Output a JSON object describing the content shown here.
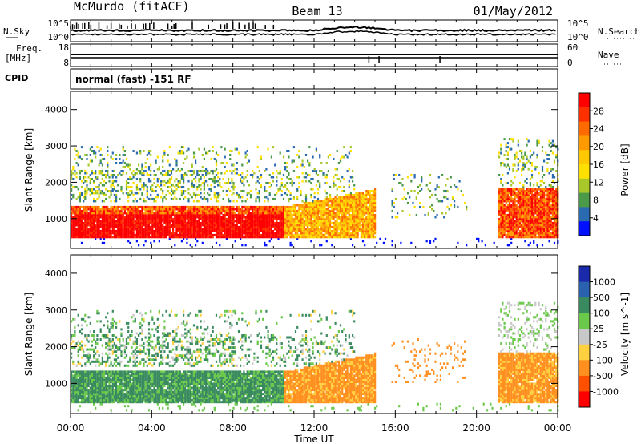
{
  "header": {
    "station": "McMurdo (fitACF)",
    "beam": "Beam 13",
    "date": "01/May/2012"
  },
  "noise_panel": {
    "left_label": "N.Sky",
    "right_label": "N.Search",
    "left_ticks": [
      "10^5",
      "10^0"
    ],
    "right_ticks": [
      "10^5",
      "10^0"
    ]
  },
  "freq_panel": {
    "left_label_1": "Freq.",
    "left_label_2": "[MHz]",
    "left_ticks": [
      "18",
      "8"
    ],
    "right_label": "Nave",
    "right_ticks": [
      "60",
      "0"
    ]
  },
  "cpid_panel": {
    "label": "CPID",
    "text": "normal (fast) -151 RF"
  },
  "power_panel": {
    "ylabel": "Slant Range [km]",
    "yticks": [
      "4000",
      "3000",
      "2000",
      "1000"
    ],
    "colorbar_label": "Power [dB]",
    "colorbar_ticks": [
      "28",
      "24",
      "20",
      "16",
      "12",
      "8",
      "4"
    ],
    "colorbar_colors": [
      "#ff0000",
      "#ff3000",
      "#ff6a00",
      "#ff9a00",
      "#ffc800",
      "#ffe000",
      "#a8c82a",
      "#4a9a4a",
      "#2a6ab0",
      "#0010ff"
    ]
  },
  "velocity_panel": {
    "ylabel": "Slant Range [km]",
    "yticks": [
      "4000",
      "3000",
      "2000",
      "1000"
    ],
    "colorbar_label": "Velocity [m s^-1]",
    "colorbar_ticks": [
      "1000",
      "500",
      "100",
      "25",
      "-25",
      "-100",
      "-500",
      "-1000"
    ],
    "colorbar_colors": [
      "#1a2aaa",
      "#2a62b0",
      "#3a8a60",
      "#6ac84a",
      "#c8c8c8",
      "#ffd040",
      "#ff9020",
      "#ff5000",
      "#ff0000"
    ]
  },
  "xaxis": {
    "ticks": [
      "00:00",
      "04:00",
      "08:00",
      "12:00",
      "16:00",
      "20:00",
      "00:00"
    ],
    "label": "Time UT"
  },
  "chart_data": [
    {
      "type": "heatmap",
      "title": "McMurdo (fitACF) Beam 13 01/May/2012",
      "xlabel": "Time UT",
      "ylabel": "Slant Range [km]",
      "x_range": [
        "00:00",
        "24:00"
      ],
      "ylim": [
        180,
        4500
      ],
      "colorbar": {
        "label": "Power [dB]",
        "range": [
          0,
          30
        ],
        "ticks": [
          4,
          8,
          12,
          16,
          20,
          24,
          28
        ]
      },
      "features": [
        {
          "time": "00:00-10:30",
          "range_km": [
            500,
            1300
          ],
          "power_db": 28
        },
        {
          "time": "10:30-15:00",
          "range_km": [
            500,
            1800
          ],
          "power_db": 20
        },
        {
          "time": "21:00-24:00",
          "range_km": [
            500,
            1800
          ],
          "power_db": 24
        },
        {
          "time": "00:00-10:30",
          "range_km": [
            1500,
            3000
          ],
          "power_db": 10
        }
      ]
    },
    {
      "type": "heatmap",
      "title": "",
      "xlabel": "Time UT",
      "ylabel": "Slant Range [km]",
      "x_range": [
        "00:00",
        "24:00"
      ],
      "ylim": [
        180,
        4500
      ],
      "colorbar": {
        "label": "Velocity [m s^-1]",
        "ticks": [
          1000,
          500,
          100,
          25,
          -25,
          -100,
          -500,
          -1000
        ]
      },
      "features": [
        {
          "time": "00:00-09:30",
          "range_km": [
            500,
            1700
          ],
          "velocity": 100
        },
        {
          "time": "09:30-15:00",
          "range_km": [
            500,
            1800
          ],
          "velocity": -100
        },
        {
          "time": "20:30-24:00",
          "range_km": [
            500,
            1800
          ],
          "velocity": -100
        },
        {
          "time": "00:00-10:30",
          "range_km": [
            1500,
            3000
          ],
          "velocity": 100
        }
      ]
    }
  ]
}
